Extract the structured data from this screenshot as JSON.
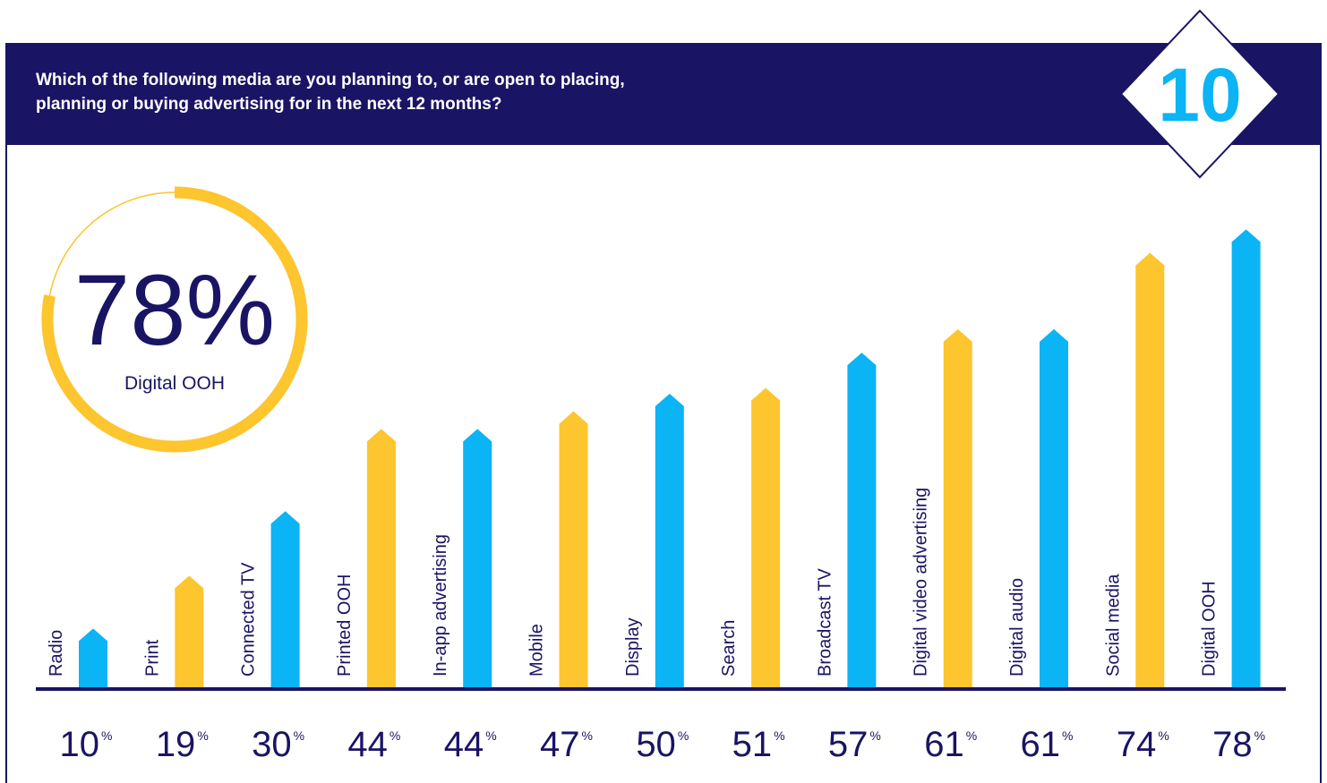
{
  "chart_data": {
    "type": "bar",
    "title": [
      "Which of the following media are you planning to, or are open to placing,",
      "planning or buying advertising for in the next 12 months?"
    ],
    "badge": "10",
    "highlight": {
      "value": 78,
      "value_label": "78%",
      "label": "Digital OOH",
      "color": "#fdc52e"
    },
    "categories": [
      "Radio",
      "Print",
      "Connected TV",
      "Printed OOH",
      "In-app advertising",
      "Mobile",
      "Display",
      "Search",
      "Broadcast TV",
      "Digital video advertising",
      "Digital audio",
      "Social media",
      "Digital OOH"
    ],
    "values": [
      10,
      19,
      30,
      44,
      44,
      47,
      50,
      51,
      57,
      61,
      61,
      74,
      78
    ],
    "value_labels": [
      "10%",
      "19%",
      "30%",
      "44%",
      "44%",
      "47%",
      "50%",
      "51%",
      "57%",
      "61%",
      "61%",
      "74%",
      "78%"
    ],
    "colors": [
      "#0bb4f5",
      "#fdc52e",
      "#0bb4f5",
      "#fdc52e",
      "#0bb4f5",
      "#fdc52e",
      "#0bb4f5",
      "#fdc52e",
      "#0bb4f5",
      "#fdc52e",
      "#0bb4f5",
      "#fdc52e",
      "#0bb4f5"
    ]
  }
}
